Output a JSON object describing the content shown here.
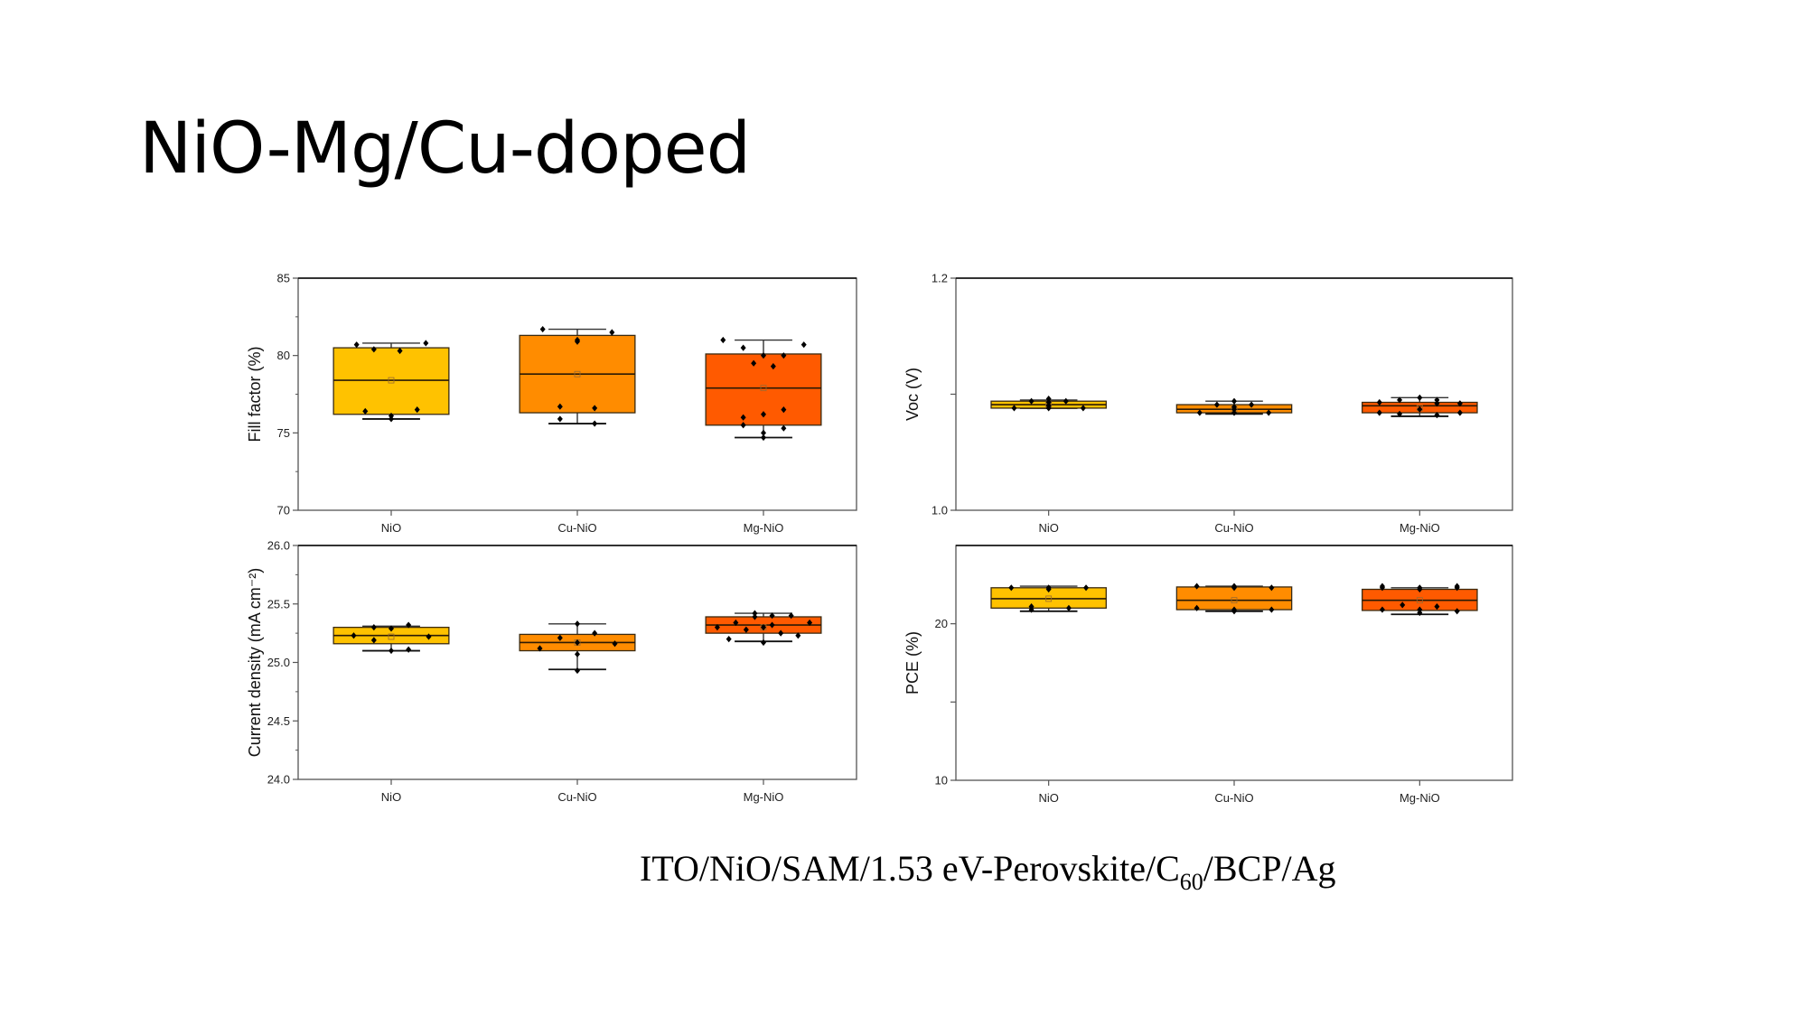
{
  "slide": {
    "title": "NiO-Mg/Cu-doped",
    "caption_parts": {
      "before_sub": "ITO/NiO/SAM/1.53 eV-Perovskite/C",
      "sub": "60",
      "after_sub": "/BCP/Ag"
    }
  },
  "colors": {
    "NiO": "#FFC200",
    "Cu-NiO": "#FF8C00",
    "Mg-NiO": "#FF5A00"
  },
  "chart_data": [
    {
      "id": "fill-factor",
      "type": "box",
      "title": "",
      "xlabel": "",
      "ylabel": "Fill factor (%)",
      "categories": [
        "NiO",
        "Cu-NiO",
        "Mg-NiO"
      ],
      "ylim": [
        70,
        85
      ],
      "yticks": [
        70,
        75,
        80,
        85
      ],
      "ytick_labels": [
        "70",
        "75",
        "80",
        "85"
      ],
      "minor_yticks": [
        72.5,
        77.5,
        82.5
      ],
      "grid": false,
      "boxes": [
        {
          "category": "NiO",
          "whisker_low": 75.9,
          "q1": 76.2,
          "median": 78.4,
          "mean": 78.4,
          "q3": 80.5,
          "whisker_high": 80.8,
          "points": [
            [
              -0.6,
              80.7
            ],
            [
              -0.3,
              80.4
            ],
            [
              0.15,
              80.3
            ],
            [
              0.6,
              80.8
            ],
            [
              -0.45,
              76.4
            ],
            [
              0.0,
              76.1
            ],
            [
              0.0,
              75.9
            ],
            [
              0.45,
              76.5
            ]
          ]
        },
        {
          "category": "Cu-NiO",
          "whisker_low": 75.6,
          "q1": 76.3,
          "median": 78.8,
          "mean": 78.8,
          "q3": 81.3,
          "whisker_high": 81.7,
          "points": [
            [
              -0.6,
              81.7
            ],
            [
              0.0,
              81.0
            ],
            [
              0.0,
              80.9
            ],
            [
              0.6,
              81.5
            ],
            [
              -0.3,
              76.7
            ],
            [
              0.3,
              76.6
            ],
            [
              -0.3,
              75.9
            ],
            [
              0.3,
              75.6
            ]
          ]
        },
        {
          "category": "Mg-NiO",
          "whisker_low": 74.7,
          "q1": 75.5,
          "median": 77.9,
          "mean": 77.9,
          "q3": 80.1,
          "whisker_high": 81.0,
          "points": [
            [
              -0.7,
              81.0
            ],
            [
              -0.35,
              80.5
            ],
            [
              0.0,
              80.0
            ],
            [
              0.35,
              80.0
            ],
            [
              0.7,
              80.7
            ],
            [
              -0.17,
              79.5
            ],
            [
              0.17,
              79.3
            ],
            [
              -0.35,
              76.0
            ],
            [
              0.0,
              76.2
            ],
            [
              0.35,
              76.5
            ],
            [
              -0.35,
              75.5
            ],
            [
              0.35,
              75.3
            ],
            [
              0.0,
              75.0
            ],
            [
              0.0,
              74.7
            ]
          ]
        }
      ]
    },
    {
      "id": "voc",
      "type": "box",
      "title": "",
      "xlabel": "",
      "ylabel": "Voc (V)",
      "categories": [
        "NiO",
        "Cu-NiO",
        "Mg-NiO"
      ],
      "ylim": [
        1.0,
        1.2
      ],
      "yticks": [
        1.0,
        1.1,
        1.2
      ],
      "ytick_labels": [
        "1.0",
        "",
        "1.2"
      ],
      "minor_yticks": [],
      "grid": false,
      "boxes": [
        {
          "category": "NiO",
          "whisker_low": 1.088,
          "q1": 1.088,
          "median": 1.091,
          "mean": 1.091,
          "q3": 1.094,
          "whisker_high": 1.095,
          "points": [
            [
              -0.6,
              1.088
            ],
            [
              -0.3,
              1.094
            ],
            [
              0.0,
              1.096
            ],
            [
              0.0,
              1.093
            ],
            [
              0.0,
              1.09
            ],
            [
              0.0,
              1.088
            ],
            [
              0.3,
              1.094
            ],
            [
              0.6,
              1.088
            ]
          ]
        },
        {
          "category": "Cu-NiO",
          "whisker_low": 1.083,
          "q1": 1.084,
          "median": 1.087,
          "mean": 1.087,
          "q3": 1.091,
          "whisker_high": 1.094,
          "points": [
            [
              -0.6,
              1.084
            ],
            [
              -0.3,
              1.091
            ],
            [
              0.0,
              1.094
            ],
            [
              0.0,
              1.089
            ],
            [
              0.0,
              1.087
            ],
            [
              0.0,
              1.084
            ],
            [
              0.3,
              1.091
            ],
            [
              0.6,
              1.084
            ]
          ]
        },
        {
          "category": "Mg-NiO",
          "whisker_low": 1.081,
          "q1": 1.084,
          "median": 1.09,
          "mean": 1.088,
          "q3": 1.093,
          "whisker_high": 1.097,
          "points": [
            [
              -0.7,
              1.093
            ],
            [
              -0.35,
              1.095
            ],
            [
              0.0,
              1.097
            ],
            [
              0.3,
              1.095
            ],
            [
              0.7,
              1.092
            ],
            [
              -0.35,
              1.083
            ],
            [
              0.0,
              1.087
            ],
            [
              0.3,
              1.082
            ],
            [
              -0.7,
              1.084
            ],
            [
              0.7,
              1.084
            ],
            [
              0.3,
              1.092
            ]
          ]
        }
      ]
    },
    {
      "id": "current-density",
      "type": "box",
      "title": "",
      "xlabel": "",
      "ylabel": "Current density (mA cm⁻²)",
      "categories": [
        "NiO",
        "Cu-NiO",
        "Mg-NiO"
      ],
      "ylim": [
        24.0,
        26.0
      ],
      "yticks": [
        24.0,
        24.5,
        25.0,
        25.5,
        26.0
      ],
      "ytick_labels": [
        "24.0",
        "24.5",
        "25.0",
        "25.5",
        "26.0"
      ],
      "minor_yticks": [
        24.25,
        24.75,
        25.25,
        25.75
      ],
      "grid": false,
      "boxes": [
        {
          "category": "NiO",
          "whisker_low": 25.1,
          "q1": 25.16,
          "median": 25.23,
          "mean": 25.22,
          "q3": 25.3,
          "whisker_high": 25.31,
          "points": [
            [
              -0.65,
              25.23
            ],
            [
              -0.3,
              25.3
            ],
            [
              0.0,
              25.29
            ],
            [
              0.3,
              25.32
            ],
            [
              -0.3,
              25.19
            ],
            [
              0.65,
              25.22
            ],
            [
              0.0,
              25.1
            ],
            [
              0.3,
              25.11
            ]
          ]
        },
        {
          "category": "Cu-NiO",
          "whisker_low": 24.94,
          "q1": 25.1,
          "median": 25.17,
          "mean": 25.17,
          "q3": 25.24,
          "whisker_high": 25.33,
          "points": [
            [
              -0.65,
              25.12
            ],
            [
              -0.3,
              25.21
            ],
            [
              0.0,
              25.33
            ],
            [
              0.0,
              25.17
            ],
            [
              0.0,
              25.07
            ],
            [
              0.0,
              24.93
            ],
            [
              0.3,
              25.25
            ],
            [
              0.65,
              25.16
            ]
          ]
        },
        {
          "category": "Mg-NiO",
          "whisker_low": 25.18,
          "q1": 25.25,
          "median": 25.32,
          "mean": 25.3,
          "q3": 25.39,
          "whisker_high": 25.42,
          "points": [
            [
              -0.8,
              25.3
            ],
            [
              -0.6,
              25.2
            ],
            [
              -0.48,
              25.34
            ],
            [
              -0.3,
              25.28
            ],
            [
              -0.15,
              25.42
            ],
            [
              -0.15,
              25.39
            ],
            [
              0.0,
              25.3
            ],
            [
              0.0,
              25.17
            ],
            [
              0.15,
              25.4
            ],
            [
              0.15,
              25.32
            ],
            [
              0.3,
              25.25
            ],
            [
              0.48,
              25.4
            ],
            [
              0.6,
              25.23
            ],
            [
              0.8,
              25.34
            ]
          ]
        }
      ]
    },
    {
      "id": "pce",
      "type": "box",
      "title": "",
      "xlabel": "",
      "ylabel": "PCE (%)",
      "categories": [
        "NiO",
        "Cu-NiO",
        "Mg-NiO"
      ],
      "ylim": [
        10,
        25
      ],
      "yticks": [
        10,
        15,
        20
      ],
      "ytick_labels": [
        "10",
        "",
        "20"
      ],
      "minor_yticks": [],
      "grid": false,
      "boxes": [
        {
          "category": "NiO",
          "whisker_low": 20.8,
          "q1": 21.0,
          "median": 21.6,
          "mean": 21.6,
          "q3": 22.3,
          "whisker_high": 22.4,
          "points": [
            [
              -0.65,
              22.3
            ],
            [
              0.0,
              22.3
            ],
            [
              0.0,
              22.2
            ],
            [
              0.65,
              22.3
            ],
            [
              -0.3,
              21.1
            ],
            [
              -0.3,
              20.9
            ],
            [
              0.35,
              21.0
            ]
          ]
        },
        {
          "category": "Cu-NiO",
          "whisker_low": 20.8,
          "q1": 20.9,
          "median": 21.5,
          "mean": 21.5,
          "q3": 22.35,
          "whisker_high": 22.4,
          "points": [
            [
              -0.65,
              22.4
            ],
            [
              0.0,
              22.4
            ],
            [
              0.0,
              22.3
            ],
            [
              0.65,
              22.3
            ],
            [
              -0.65,
              21.0
            ],
            [
              0.0,
              20.9
            ],
            [
              0.0,
              20.8
            ],
            [
              0.65,
              20.9
            ]
          ]
        },
        {
          "category": "Mg-NiO",
          "whisker_low": 20.6,
          "q1": 20.85,
          "median": 21.5,
          "mean": 21.5,
          "q3": 22.2,
          "whisker_high": 22.3,
          "points": [
            [
              -0.65,
              22.4
            ],
            [
              -0.65,
              22.3
            ],
            [
              0.0,
              22.3
            ],
            [
              0.0,
              22.2
            ],
            [
              0.65,
              22.4
            ],
            [
              0.65,
              22.3
            ],
            [
              -0.65,
              20.9
            ],
            [
              -0.3,
              21.2
            ],
            [
              0.0,
              20.9
            ],
            [
              0.0,
              20.7
            ],
            [
              0.3,
              21.1
            ],
            [
              0.65,
              20.8
            ]
          ]
        }
      ]
    }
  ]
}
